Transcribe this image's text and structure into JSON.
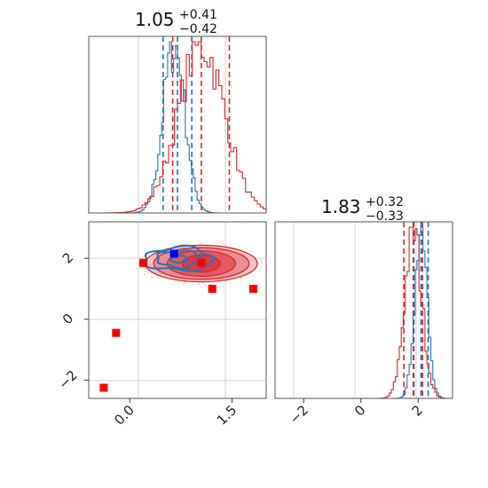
{
  "chart_data": {
    "type": "corner",
    "series": [
      {
        "name": "",
        "color": "#d62728"
      },
      {
        "name": "",
        "color": "#1f77b4"
      }
    ],
    "panels": [
      {
        "id": "hist-x",
        "type": "histogram",
        "title": {
          "median": "1.05",
          "upper": "+0.41",
          "lower": "−0.42"
        },
        "xlim": [
          -0.6,
          2.0
        ],
        "grid_x": [
          0.0,
          1.5
        ],
        "red_lines": [
          0.63,
          1.05,
          1.46
        ],
        "blue_lines": [
          0.49,
          0.7,
          0.91
        ],
        "blue_peak": 0.65,
        "blue_sigma": 0.16,
        "red_peak": 1.05,
        "red_sigma": 0.34
      },
      {
        "id": "scatter-xy",
        "type": "contour",
        "xlim": [
          -0.6,
          2.0
        ],
        "ylim": [
          -2.6,
          3.2
        ],
        "xticks": [
          {
            "value": 0.0,
            "label": "0.0"
          },
          {
            "value": 1.5,
            "label": "1.5"
          }
        ],
        "yticks": [
          {
            "value": -2,
            "label": "−2"
          },
          {
            "value": 0,
            "label": "0"
          },
          {
            "value": 2,
            "label": "2"
          }
        ],
        "red_center": [
          1.05,
          1.83
        ],
        "red_radii": [
          [
            0.28,
            0.28
          ],
          [
            0.5,
            0.42
          ],
          [
            0.7,
            0.52
          ],
          [
            0.82,
            0.6
          ]
        ],
        "blue_center": [
          0.72,
          1.98
        ],
        "blue_radii": [
          [
            0.12,
            0.12
          ],
          [
            0.32,
            0.27
          ],
          [
            0.5,
            0.38
          ]
        ],
        "red_points": [
          {
            "x": -0.38,
            "y": -2.25
          },
          {
            "x": -0.2,
            "y": -0.45
          },
          {
            "x": 0.2,
            "y": 1.85
          },
          {
            "x": 1.05,
            "y": 1.85
          },
          {
            "x": 1.21,
            "y": 1.0
          },
          {
            "x": 1.81,
            "y": 1.0
          }
        ],
        "blue_points": [
          {
            "x": 0.65,
            "y": 2.15
          }
        ]
      },
      {
        "id": "hist-y",
        "type": "histogram",
        "title": {
          "median": "1.83",
          "upper": "+0.32",
          "lower": "−0.33"
        },
        "xlim": [
          -3.0,
          3.2
        ],
        "xticks": [
          {
            "value": -2,
            "label": "−2"
          },
          {
            "value": 0,
            "label": "0"
          },
          {
            "value": 2,
            "label": "2"
          }
        ],
        "red_lines": [
          1.5,
          1.83,
          2.15
        ],
        "blue_lines": [
          1.85,
          2.1,
          2.35
        ],
        "blue_peak": 2.1,
        "blue_sigma": 0.22,
        "red_peak": 1.83,
        "red_sigma": 0.3
      }
    ]
  }
}
